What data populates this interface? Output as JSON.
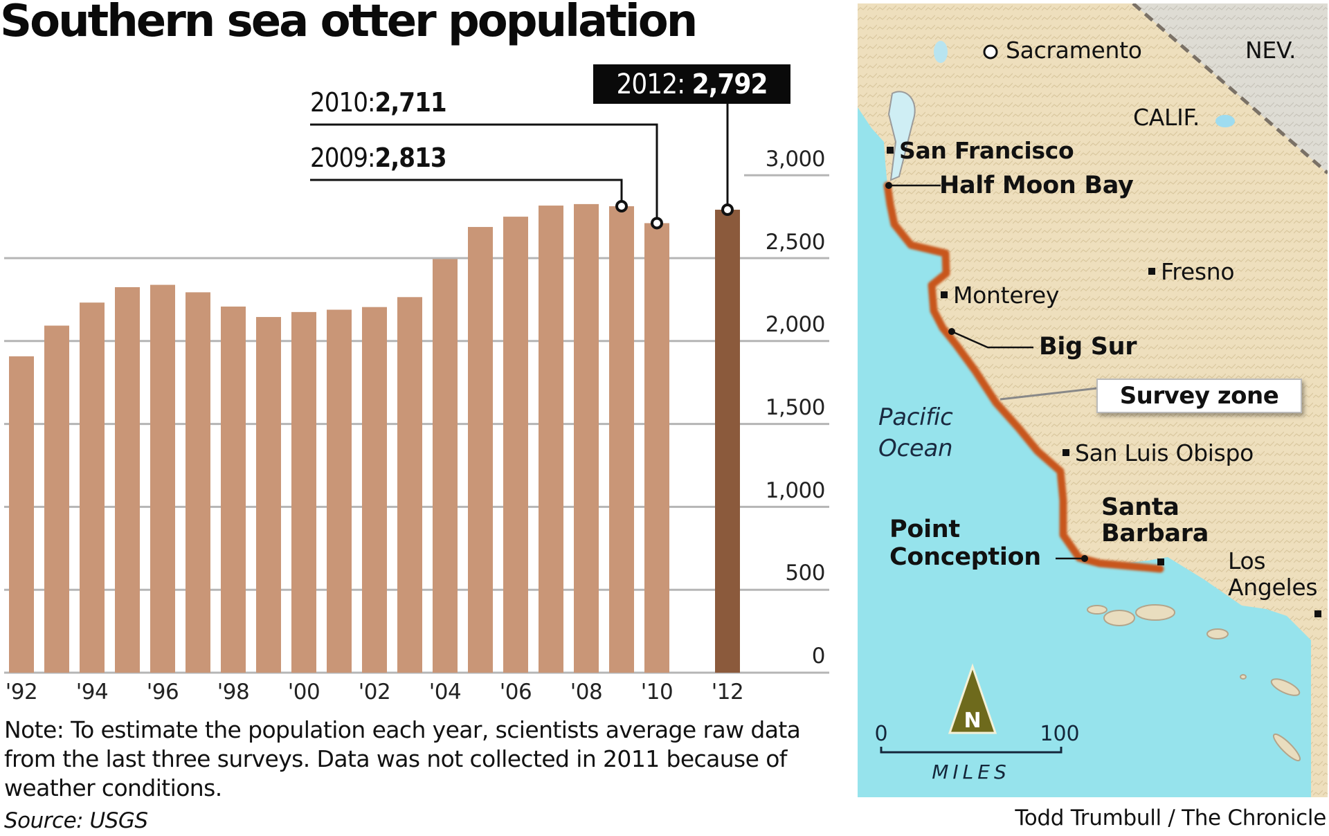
{
  "title": "Southern sea otter population",
  "annotations": {
    "a2010": {
      "year": "2010:",
      "value": "2,711"
    },
    "a2009": {
      "year": "2009:",
      "value": "2,813"
    },
    "a2012": {
      "year": "2012:",
      "value": "2,792"
    }
  },
  "y_ticks": [
    "3,000",
    "2,500",
    "2,000",
    "1,500",
    "1,000",
    "500",
    "0"
  ],
  "x_ticks": [
    "'92",
    "'94",
    "'96",
    "'98",
    "'00",
    "'02",
    "'04",
    "'06",
    "'08",
    "'10",
    "'12"
  ],
  "note": "Note: To estimate the population each year, scientists average raw data from the last three surveys. Data was not collected in 2011 because of weather conditions.",
  "source": "Source: USGS",
  "credit": "Todd Trumbull / The Chronicle",
  "colors": {
    "bar": "#c99677",
    "bar_highlight": "#8b5a3c",
    "gridline": "#b5b5b5",
    "ocean": "#96e3ec",
    "land": "#eedfbd",
    "nevada": "#dcdad2",
    "survey_zone": "#c8561c"
  },
  "map": {
    "labels": {
      "sacramento": "Sacramento",
      "nev": "NEV.",
      "calif": "CALIF.",
      "san_francisco": "San Francisco",
      "half_moon_bay": "Half Moon Bay",
      "fresno": "Fresno",
      "monterey": "Monterey",
      "big_sur": "Big Sur",
      "survey_zone": "Survey zone",
      "pacific": "Pacific",
      "ocean": "Ocean",
      "san_luis_obispo": "San Luis Obispo",
      "santa": "Santa",
      "barbara": "Barbara",
      "point": "Point",
      "conception": "Conception",
      "los": "Los",
      "angeles": "Angeles"
    },
    "scale": {
      "min": "0",
      "max": "100",
      "unit": "MILES"
    },
    "north_arrow": "N"
  },
  "chart_data": {
    "type": "bar",
    "title": "Southern sea otter population",
    "xlabel": "",
    "ylabel": "",
    "categories": [
      "1992",
      "1993",
      "1994",
      "1995",
      "1996",
      "1997",
      "1998",
      "1999",
      "2000",
      "2001",
      "2002",
      "2003",
      "2004",
      "2005",
      "2006",
      "2007",
      "2008",
      "2009",
      "2010",
      "2011",
      "2012"
    ],
    "values": [
      1908,
      2093,
      2232,
      2325,
      2339,
      2294,
      2208,
      2145,
      2175,
      2189,
      2205,
      2265,
      2494,
      2688,
      2750,
      2817,
      2826,
      2813,
      2711,
      null,
      2792
    ],
    "ylim": [
      0,
      3000
    ],
    "y_ticks": [
      0,
      500,
      1000,
      1500,
      2000,
      2500,
      3000
    ],
    "grid": true,
    "legend": "none",
    "annotations": [
      {
        "year": 2009,
        "text": "2009: 2,813"
      },
      {
        "year": 2010,
        "text": "2010: 2,711"
      },
      {
        "year": 2012,
        "text": "2012: 2,792",
        "highlighted": true
      }
    ],
    "notes": "Data was not collected in 2011 because of weather conditions."
  }
}
